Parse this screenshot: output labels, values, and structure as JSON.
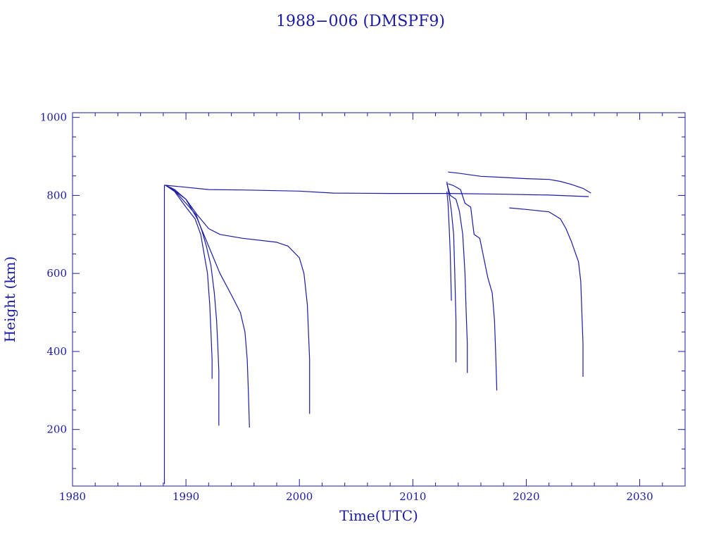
{
  "colors": {
    "ink": "#1a1aa6",
    "background": "#ffffff"
  },
  "chart_data": {
    "type": "line",
    "title": "1988−006 (DMSPF9)",
    "xlabel": "Time(UTC)",
    "ylabel": "Height (km)",
    "xlim": [
      1980,
      2034
    ],
    "ylim": [
      55,
      1012
    ],
    "xticks": [
      1980,
      1990,
      2000,
      2010,
      2020,
      2030
    ],
    "yticks": [
      200,
      400,
      600,
      800,
      1000
    ],
    "grid": false,
    "legend": "none",
    "series": [
      {
        "x": [
          1988.1,
          1988.1,
          1988.2
        ],
        "y": [
          60,
          826,
          826
        ]
      },
      {
        "x": [
          1988.2,
          1990,
          1992,
          1995,
          2000,
          2003,
          2008,
          2013,
          2018,
          2022,
          2025.5
        ],
        "y": [
          826,
          821,
          815,
          814,
          811,
          806,
          805,
          805,
          803,
          801,
          797
        ]
      },
      {
        "x": [
          1988.2,
          1989,
          1990,
          1990.8,
          1991.3,
          1991.6,
          1991.9,
          1992.1,
          1992.2,
          1992.3,
          1992.3
        ],
        "y": [
          826,
          810,
          770,
          740,
          700,
          650,
          600,
          520,
          450,
          380,
          330
        ]
      },
      {
        "x": [
          1988.2,
          1989,
          1990,
          1990.9,
          1991.4,
          1991.8,
          1992.2,
          1992.5,
          1992.7,
          1992.8,
          1992.9,
          1992.9
        ],
        "y": [
          826,
          812,
          780,
          750,
          710,
          670,
          620,
          550,
          480,
          420,
          350,
          210
        ]
      },
      {
        "x": [
          1988.2,
          1989,
          1990,
          1991,
          1992,
          1993,
          1994,
          1994.8,
          1995.2,
          1995.4,
          1995.5,
          1995.6
        ],
        "y": [
          826,
          815,
          790,
          740,
          670,
          600,
          545,
          500,
          450,
          380,
          300,
          205
        ]
      },
      {
        "x": [
          1988.2,
          1989,
          1990,
          1991,
          1992,
          1993,
          1995,
          1998,
          1999,
          2000,
          2000.4,
          2000.7,
          2000.8,
          2000.9,
          2000.9
        ],
        "y": [
          826,
          812,
          790,
          750,
          715,
          700,
          690,
          680,
          670,
          640,
          600,
          520,
          450,
          380,
          240
        ]
      },
      {
        "x": [
          2013.0,
          2013.1,
          2013.2,
          2013.3,
          2013.4
        ],
        "y": [
          810,
          780,
          720,
          650,
          530
        ]
      },
      {
        "x": [
          2013.0,
          2013.2,
          2013.4,
          2013.6,
          2013.7,
          2013.8,
          2013.8
        ],
        "y": [
          835,
          800,
          760,
          700,
          600,
          480,
          372
        ]
      },
      {
        "x": [
          2013.0,
          2013.3,
          2013.8,
          2014.1,
          2014.4,
          2014.6,
          2014.7,
          2014.8,
          2014.8
        ],
        "y": [
          830,
          800,
          790,
          760,
          700,
          600,
          500,
          420,
          345
        ]
      },
      {
        "x": [
          2013.1,
          2013.6,
          2014.2,
          2014.6,
          2015.1,
          2015.4,
          2015.9,
          2016.6,
          2017.0,
          2017.2,
          2017.3,
          2017.4
        ],
        "y": [
          830,
          825,
          815,
          780,
          770,
          700,
          690,
          590,
          550,
          480,
          400,
          300
        ]
      },
      {
        "x": [
          2013.1,
          2014,
          2016,
          2018,
          2020,
          2022,
          2023,
          2024,
          2025,
          2025.7
        ],
        "y": [
          860,
          857,
          849,
          846,
          843,
          841,
          836,
          828,
          818,
          806
        ]
      },
      {
        "x": [
          2018.5,
          2020,
          2022,
          2023,
          2023.5,
          2024,
          2024.3,
          2024.6,
          2024.8,
          2024.9,
          2025.0,
          2025.0
        ],
        "y": [
          768,
          764,
          758,
          740,
          715,
          680,
          655,
          630,
          580,
          500,
          420,
          335
        ]
      }
    ]
  }
}
